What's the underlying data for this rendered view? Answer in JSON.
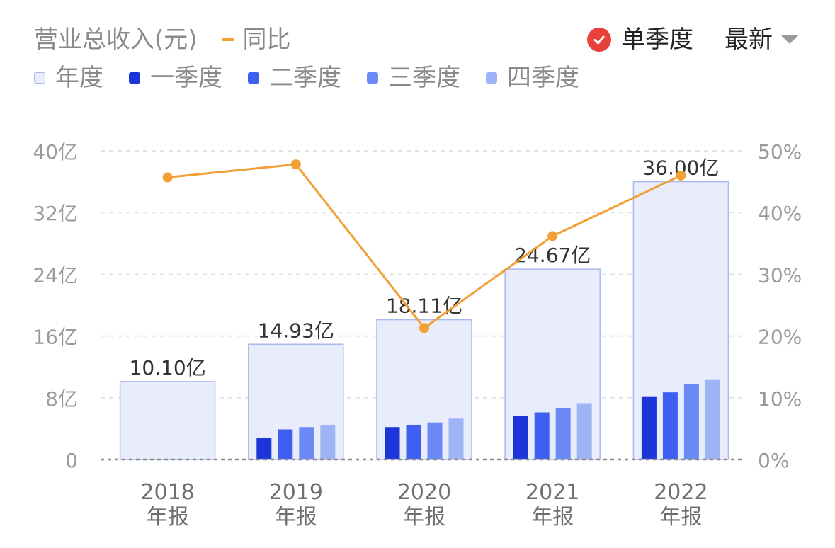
{
  "legend": {
    "metric_title": "营业总收入(元)",
    "yoy_label": "同比",
    "series": [
      {
        "key": "annual",
        "label": "年度"
      },
      {
        "key": "q1",
        "label": "一季度"
      },
      {
        "key": "q2",
        "label": "二季度"
      },
      {
        "key": "q3",
        "label": "三季度"
      },
      {
        "key": "q4",
        "label": "四季度"
      }
    ]
  },
  "controls": {
    "single_quarter_label": "单季度",
    "single_quarter_checked": true,
    "sort_label": "最新"
  },
  "colors": {
    "annual_fill": "#e9ecfb",
    "annual_stroke": "#aab8f0",
    "q1": "#1b35d6",
    "q2": "#3f5ff0",
    "q3": "#6c8af5",
    "q4": "#9fb3f7",
    "yoy_line": "#f0a035",
    "check_badge": "#e8413b"
  },
  "chart_data": {
    "type": "bar",
    "categories": [
      [
        "2018",
        "年报"
      ],
      [
        "2019",
        "年报"
      ],
      [
        "2020",
        "年报"
      ],
      [
        "2021",
        "年报"
      ],
      [
        "2022",
        "年报"
      ]
    ],
    "annual": [
      10.1,
      14.93,
      18.11,
      24.67,
      36.0
    ],
    "annual_labels": [
      "10.10亿",
      "14.93亿",
      "18.11亿",
      "24.67亿",
      "36.00亿"
    ],
    "quarters": {
      "q1": [
        null,
        2.8,
        4.2,
        5.6,
        8.1
      ],
      "q2": [
        null,
        3.9,
        4.5,
        6.1,
        8.7
      ],
      "q3": [
        null,
        4.2,
        4.8,
        6.7,
        9.8
      ],
      "q4": [
        null,
        4.5,
        5.3,
        7.3,
        10.3
      ]
    },
    "yoy": [
      45.7,
      47.8,
      21.3,
      36.2,
      46.0
    ],
    "y_left": {
      "min": 0,
      "max": 40,
      "ticks": [
        0,
        8,
        16,
        24,
        32,
        40
      ],
      "tick_labels": [
        "0",
        "8亿",
        "16亿",
        "24亿",
        "32亿",
        "40亿"
      ]
    },
    "y_right": {
      "min": 0,
      "max": 50,
      "ticks": [
        0,
        10,
        20,
        30,
        40,
        50
      ],
      "tick_labels": [
        "0%",
        "10%",
        "20%",
        "30%",
        "40%",
        "50%"
      ]
    },
    "grid": true
  }
}
